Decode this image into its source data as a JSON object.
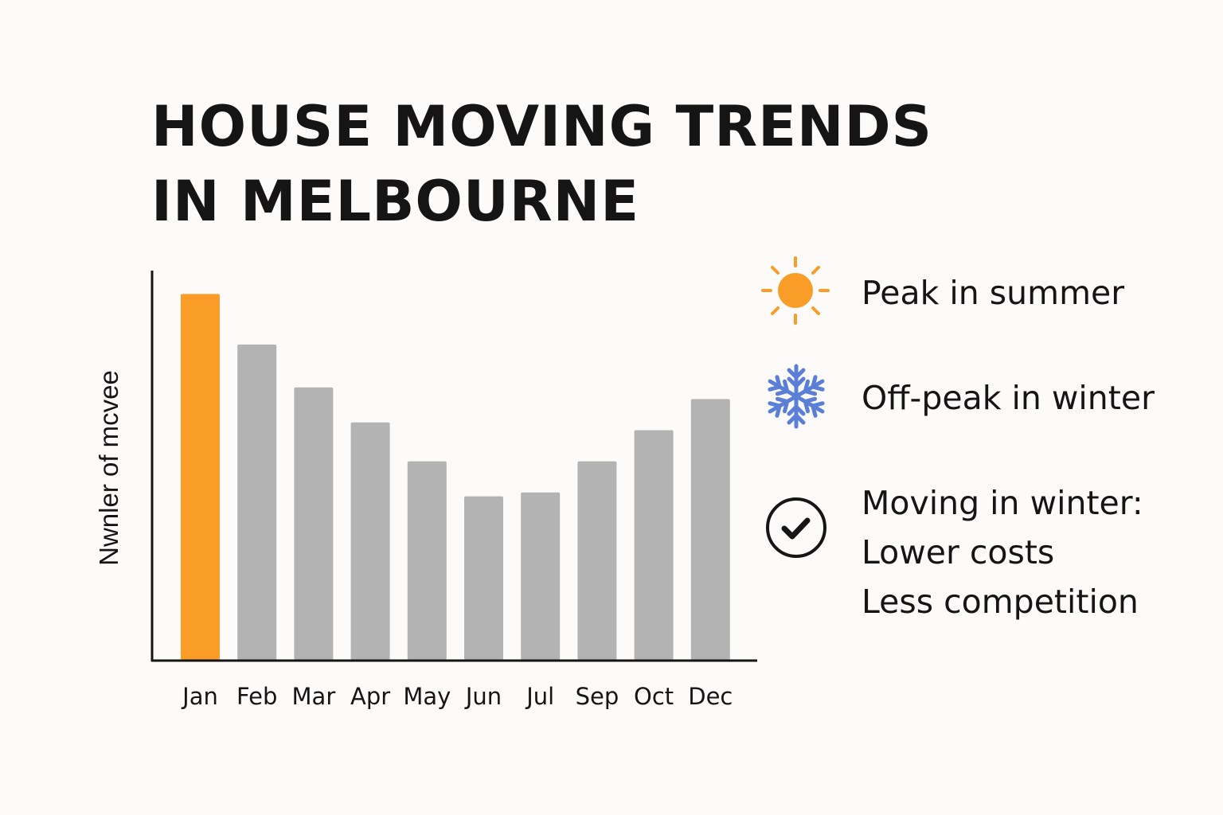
{
  "title_line1": "HOUSE MOVING TRENDS",
  "title_line2": "IN MELBOURNE",
  "chart_data": {
    "type": "bar",
    "title": "HOUSE MOVING TRENDS IN MELBOURNE",
    "xlabel": "",
    "ylabel": "Nwnler of mcvee",
    "categories": [
      "Jan",
      "Feb",
      "Mar",
      "Apr",
      "May",
      "Jun",
      "Jul",
      "Sep",
      "Oct",
      "Dec"
    ],
    "values": [
      94,
      81,
      70,
      61,
      51,
      42,
      43,
      51,
      59,
      67
    ],
    "ylim": [
      0,
      100
    ],
    "y_ticks_shown": false,
    "grid": false,
    "highlight_category": "Jan",
    "colors": {
      "highlight": "#f99d28",
      "default": "#b3b3b3",
      "axis": "#151515"
    }
  },
  "legend": [
    {
      "icon": "sun-icon",
      "color": "#f99d28",
      "lines": [
        "Peak in summer"
      ]
    },
    {
      "icon": "snowflake-icon",
      "color": "#5b7fd6",
      "lines": [
        "Off-peak in winter"
      ]
    },
    {
      "icon": "check-circle-icon",
      "color": "#151515",
      "lines": [
        "Moving in winter:",
        "Lower costs",
        "Less competition"
      ]
    }
  ]
}
